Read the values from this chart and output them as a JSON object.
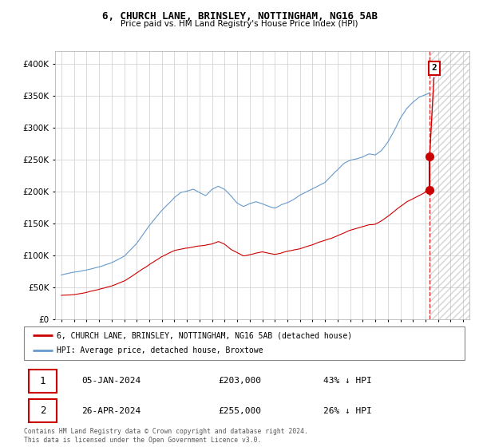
{
  "title": "6, CHURCH LANE, BRINSLEY, NOTTINGHAM, NG16 5AB",
  "subtitle": "Price paid vs. HM Land Registry's House Price Index (HPI)",
  "property_label": "6, CHURCH LANE, BRINSLEY, NOTTINGHAM, NG16 5AB (detached house)",
  "hpi_label": "HPI: Average price, detached house, Broxtowe",
  "sale1_date": "05-JAN-2024",
  "sale1_price": "£203,000",
  "sale1_note": "43% ↓ HPI",
  "sale2_date": "26-APR-2024",
  "sale2_price": "£255,000",
  "sale2_note": "26% ↓ HPI",
  "footer": "Contains HM Land Registry data © Crown copyright and database right 2024.\nThis data is licensed under the Open Government Licence v3.0.",
  "property_color": "#cc0000",
  "hpi_color": "#6699cc",
  "background_color": "#ffffff",
  "grid_color": "#cccccc",
  "ylim": [
    0,
    420000
  ],
  "yticks": [
    0,
    50000,
    100000,
    150000,
    200000,
    250000,
    300000,
    350000,
    400000
  ],
  "sale1_x": 2024.04,
  "sale1_y": 203000,
  "sale2_x": 2024.33,
  "sale2_y": 255000,
  "future_start": 2024.33,
  "xlim_left": 1994.5,
  "xlim_right": 2027.5
}
